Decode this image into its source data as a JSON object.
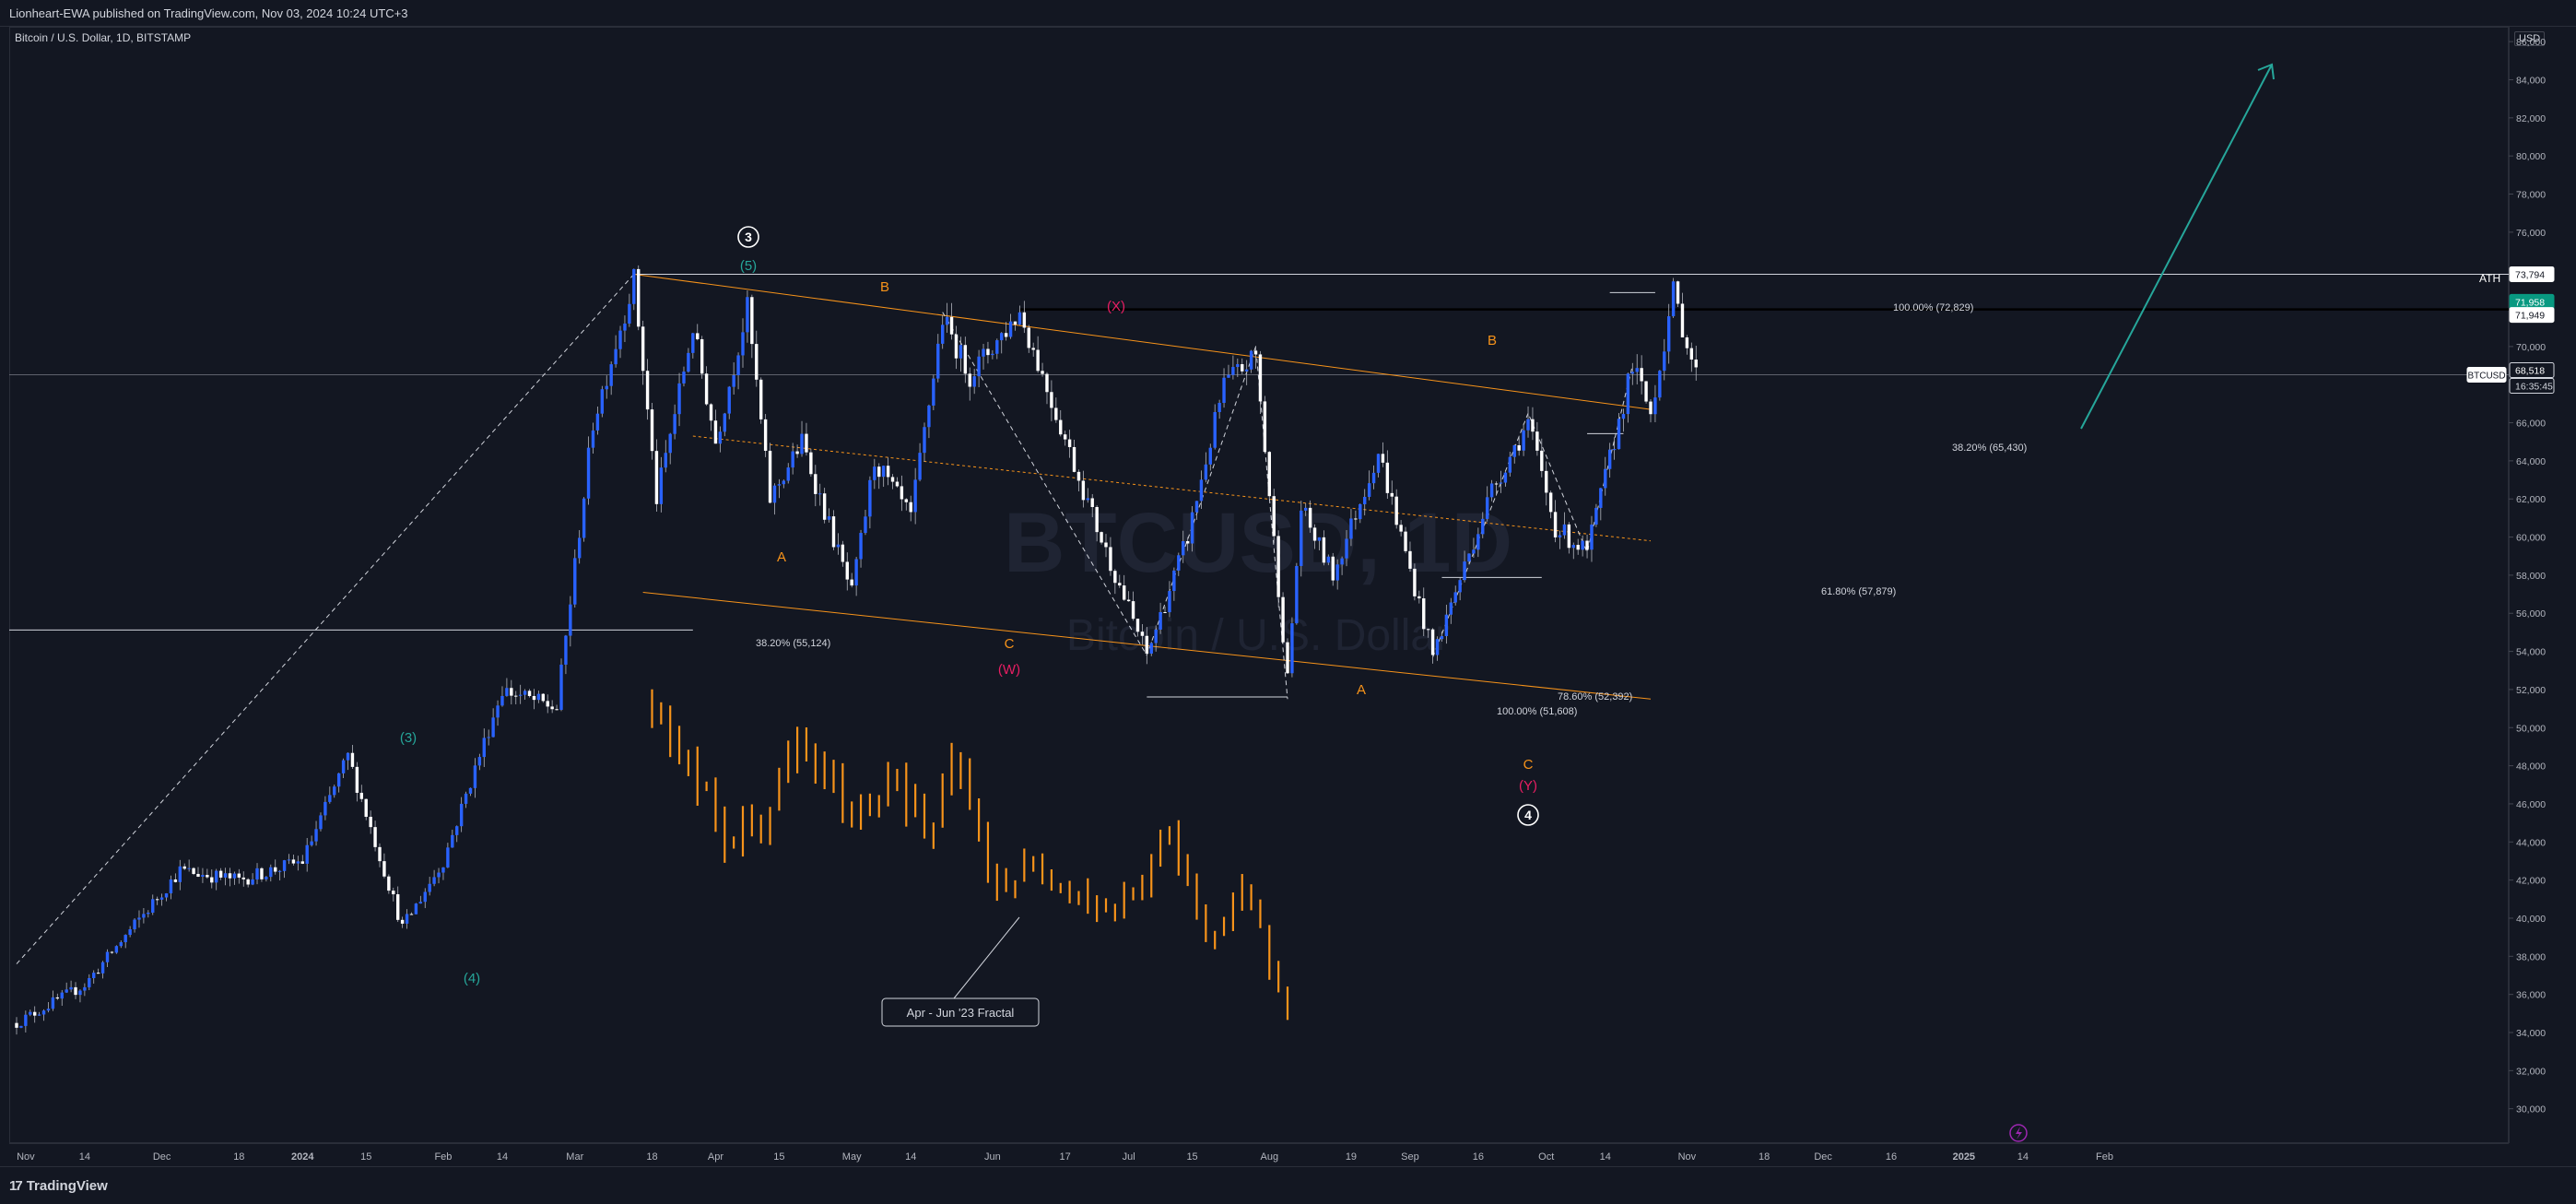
{
  "header": {
    "publish_text": "Lionheart-EWA published on TradingView.com, Nov 03, 2024 10:24 UTC+3"
  },
  "symbol_line": "Bitcoin / U.S. Dollar, 1D, BITSTAMP",
  "currency": "USD",
  "watermark": {
    "main": "BTCUSD, 1D",
    "sub": "Bitcoin / U.S. Dollar"
  },
  "footer": {
    "brand": "TradingView",
    "logo_glyph": "17"
  },
  "chart_data": {
    "type": "candlestick",
    "y_axis": {
      "ticks": [
        "86,000",
        "84,000",
        "82,000",
        "80,000",
        "78,000",
        "76,000",
        "74,000",
        "72,000",
        "70,000",
        "68,000",
        "66,000",
        "64,000",
        "62,000",
        "60,000",
        "58,000",
        "56,000",
        "54,000",
        "52,000",
        "50,000",
        "48,000",
        "46,000",
        "44,000",
        "42,000",
        "40,000",
        "38,000",
        "36,000",
        "34,000",
        "32,000",
        "30,000"
      ],
      "range": [
        28300,
        86600
      ]
    },
    "x_axis": {
      "ticks": [
        "Nov",
        "14",
        "Dec",
        "18",
        "2024",
        "15",
        "Feb",
        "14",
        "Mar",
        "18",
        "Apr",
        "15",
        "May",
        "14",
        "Jun",
        "17",
        "Jul",
        "15",
        "Aug",
        "19",
        "Sep",
        "16",
        "Oct",
        "14",
        "Nov",
        "18",
        "Dec",
        "16",
        "2025",
        "14",
        "Feb"
      ],
      "bold_ticks": [
        "2024",
        "2025"
      ]
    },
    "price_levels": [
      {
        "label": "73,794",
        "value": 73794,
        "style": "light"
      },
      {
        "label": "71,958",
        "value": 71958,
        "style": "green"
      },
      {
        "label": "71,949",
        "value": 71949,
        "style": "light"
      },
      {
        "label": "BTCUSD",
        "value": 68518,
        "style": "symbol"
      },
      {
        "label": "68,518",
        "value": 68518,
        "style": "dark"
      },
      {
        "label": "16:35:45",
        "value": 67900,
        "style": "time"
      }
    ],
    "ath_label": "ATH",
    "fib_labels": [
      {
        "text": "100.00% (72,829)",
        "value": 72829
      },
      {
        "text": "38.20% (65,430)",
        "value": 65430
      },
      {
        "text": "61.80% (57,879)",
        "value": 57879
      },
      {
        "text": "38.20% (55,124)",
        "value": 55124
      },
      {
        "text": "78.60% (52,392)",
        "value": 52392
      },
      {
        "text": "100.00% (51,608)",
        "value": 51608
      }
    ],
    "wave_labels": [
      {
        "text": "3",
        "circled": true,
        "color": "#ffffff"
      },
      {
        "text": "(5)",
        "color": "#26a69a"
      },
      {
        "text": "(3)",
        "color": "#26a69a"
      },
      {
        "text": "(4)",
        "color": "#26a69a"
      },
      {
        "text": "A",
        "color": "#f7931a"
      },
      {
        "text": "B",
        "color": "#f7931a"
      },
      {
        "text": "C",
        "color": "#f7931a"
      },
      {
        "text": "(W)",
        "color": "#e91e63"
      },
      {
        "text": "(X)",
        "color": "#e91e63"
      },
      {
        "text": "A",
        "color": "#f7931a"
      },
      {
        "text": "B",
        "color": "#f7931a"
      },
      {
        "text": "C",
        "color": "#f7931a"
      },
      {
        "text": "(Y)",
        "color": "#e91e63"
      },
      {
        "text": "4",
        "circled": true,
        "color": "#ffffff"
      }
    ],
    "callout": "Apr - Jun '23 Fractal",
    "anchors": [
      [
        "2023-10-30",
        34500
      ],
      [
        "2023-11-14",
        36500
      ],
      [
        "2023-12-05",
        42500
      ],
      [
        "2023-12-18",
        42000
      ],
      [
        "2024-01-01",
        43000
      ],
      [
        "2024-01-11",
        48500
      ],
      [
        "2024-01-23",
        39500
      ],
      [
        "2024-02-01",
        43000
      ],
      [
        "2024-02-14",
        52000
      ],
      [
        "2024-02-26",
        51000
      ],
      [
        "2024-03-05",
        66000
      ],
      [
        "2024-03-14",
        73500
      ],
      [
        "2024-03-19",
        62000
      ],
      [
        "2024-03-27",
        71000
      ],
      [
        "2024-04-01",
        65000
      ],
      [
        "2024-04-08",
        72000
      ],
      [
        "2024-04-13",
        62000
      ],
      [
        "2024-04-20",
        65000
      ],
      [
        "2024-05-01",
        57000
      ],
      [
        "2024-05-06",
        64000
      ],
      [
        "2024-05-14",
        61000
      ],
      [
        "2024-05-21",
        71500
      ],
      [
        "2024-05-27",
        68500
      ],
      [
        "2024-06-07",
        71800
      ],
      [
        "2024-06-24",
        60500
      ],
      [
        "2024-07-05",
        53800
      ],
      [
        "2024-07-14",
        60000
      ],
      [
        "2024-07-22",
        68000
      ],
      [
        "2024-07-29",
        69500
      ],
      [
        "2024-08-05",
        52500
      ],
      [
        "2024-08-08",
        61500
      ],
      [
        "2024-08-15",
        58000
      ],
      [
        "2024-08-25",
        64500
      ],
      [
        "2024-09-06",
        53800
      ],
      [
        "2024-09-19",
        62500
      ],
      [
        "2024-09-27",
        66000
      ],
      [
        "2024-10-03",
        60500
      ],
      [
        "2024-10-10",
        59200
      ],
      [
        "2024-10-20",
        69000
      ],
      [
        "2024-10-24",
        66500
      ],
      [
        "2024-10-29",
        72800
      ],
      [
        "2024-11-03",
        68518
      ]
    ],
    "fractal_anchors": [
      [
        "2024-03-18",
        51500
      ],
      [
        "2024-03-28",
        47000
      ],
      [
        "2024-04-03",
        44000
      ],
      [
        "2024-04-11",
        45000
      ],
      [
        "2024-04-19",
        49000
      ],
      [
        "2024-04-26",
        47000
      ],
      [
        "2024-05-02",
        45000
      ],
      [
        "2024-05-10",
        48000
      ],
      [
        "2024-05-18",
        44000
      ],
      [
        "2024-05-24",
        48500
      ],
      [
        "2024-05-31",
        42000
      ],
      [
        "2024-06-15",
        42500
      ],
      [
        "2024-06-25",
        40500
      ],
      [
        "2024-07-02",
        41000
      ],
      [
        "2024-07-09",
        44500
      ],
      [
        "2024-07-19",
        39000
      ],
      [
        "2024-07-26",
        41000
      ],
      [
        "2024-08-05",
        36000
      ]
    ]
  }
}
